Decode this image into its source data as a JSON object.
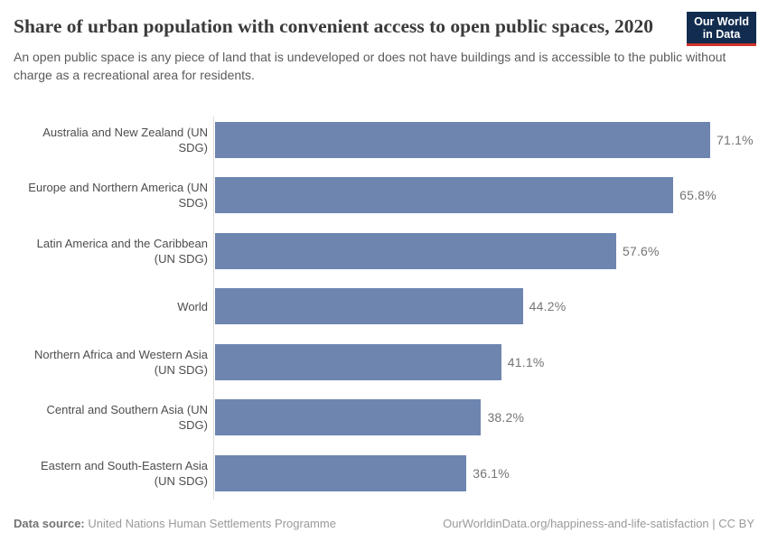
{
  "header": {
    "title": "Share of urban population with convenient access to open public spaces, 2020",
    "subtitle": "An open public space is any piece of land that is undeveloped or does not have buildings and is accessible to the public without charge as a recreational area for residents.",
    "logo": {
      "line1": "Our World",
      "line2": "in Data"
    }
  },
  "chart_data": {
    "type": "bar",
    "orientation": "horizontal",
    "title": "Share of urban population with convenient access to open public spaces, 2020",
    "categories": [
      "Australia and New Zealand (UN SDG)",
      "Europe and Northern America (UN SDG)",
      "Latin America and the Caribbean (UN SDG)",
      "World",
      "Northern Africa and Western Asia (UN SDG)",
      "Central and Southern Asia (UN SDG)",
      "Eastern and South-Eastern Asia (UN SDG)"
    ],
    "values": [
      71.1,
      65.8,
      57.6,
      44.2,
      41.1,
      38.2,
      36.1
    ],
    "value_labels": [
      "71.1%",
      "65.8%",
      "57.6%",
      "44.2%",
      "41.1%",
      "38.2%",
      "36.1%"
    ],
    "xlabel": "",
    "ylabel": "",
    "xlim": [
      0,
      79.4
    ],
    "grid": false,
    "legend": false,
    "unit": "%"
  },
  "colors": {
    "bar": "#6e85b0",
    "logo_navy": "#112c4e",
    "logo_red": "#d0342c",
    "axis": "#dbdbdb"
  },
  "footer": {
    "source_label": "Data source:",
    "source_value": "United Nations Human Settlements Programme",
    "license": "OurWorldinData.org/happiness-and-life-satisfaction | CC BY"
  }
}
